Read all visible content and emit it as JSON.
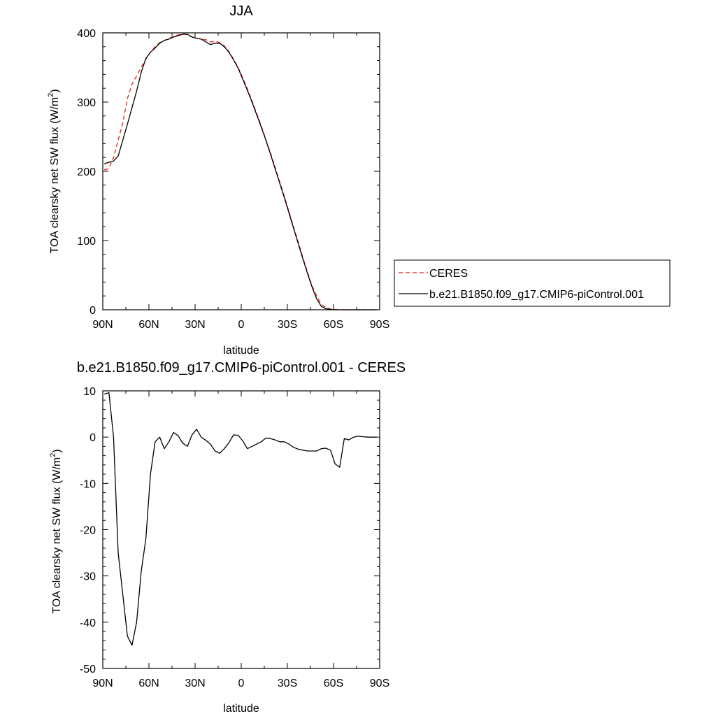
{
  "chart_data": [
    {
      "type": "line",
      "title": "JJA",
      "xlabel": "latitude",
      "ylabel": "TOA clearsky net SW flux (W/m²)",
      "ylabel_main": "TOA clearsky net SW flux (W/m",
      "ylabel_sup": "2",
      "ylabel_close": ")",
      "xlim": [
        90,
        -90
      ],
      "ylim": [
        0,
        400
      ],
      "x_ticks": [
        90,
        60,
        30,
        0,
        -30,
        -60,
        -90
      ],
      "x_tick_labels": [
        "90N",
        "60N",
        "30N",
        "0",
        "30S",
        "60S",
        "90S"
      ],
      "y_ticks": [
        0,
        100,
        200,
        300,
        400
      ],
      "y_tick_labels": [
        "0",
        "100",
        "200",
        "300",
        "400"
      ],
      "legend_position": "right",
      "series": [
        {
          "name": "CERES",
          "color": "#e8221c",
          "dash": true,
          "x": [
            89,
            86,
            83,
            80,
            77,
            74,
            71,
            68,
            65,
            62,
            59,
            56,
            53,
            50,
            47,
            44,
            41,
            38,
            35,
            32,
            29,
            26,
            23,
            20,
            17,
            14,
            11,
            8,
            5,
            2,
            -1,
            -4,
            -7,
            -10,
            -13,
            -16,
            -19,
            -22,
            -25,
            -28,
            -31,
            -34,
            -37,
            -40,
            -43,
            -46,
            -49,
            -52,
            -55,
            -58,
            -61,
            -64,
            -67,
            -70,
            -73,
            -76,
            -79,
            -82,
            -85,
            -88
          ],
          "values": [
            202,
            204,
            220,
            245,
            270,
            305,
            326,
            338,
            350,
            362,
            372,
            380,
            386,
            389,
            392,
            395,
            397,
            399,
            397,
            394,
            392,
            391,
            390,
            387,
            388,
            386,
            381,
            373,
            362,
            350,
            335,
            319,
            302,
            284,
            266,
            246,
            227,
            206,
            185,
            164,
            142,
            120,
            98,
            76,
            55,
            35,
            20,
            8,
            3,
            1,
            0.5,
            0,
            0,
            0,
            0,
            0,
            0,
            0,
            0,
            0
          ]
        },
        {
          "name": "b.e21.B1850.f09_g17.CMIP6-piControl.001",
          "color": "#000000",
          "dash": false,
          "x": [
            89,
            86,
            83,
            80,
            77,
            74,
            71,
            68,
            65,
            62,
            59,
            56,
            53,
            50,
            47,
            44,
            41,
            38,
            35,
            32,
            29,
            26,
            23,
            20,
            17,
            14,
            11,
            8,
            5,
            2,
            -1,
            -4,
            -7,
            -10,
            -13,
            -16,
            -19,
            -22,
            -25,
            -28,
            -31,
            -34,
            -37,
            -40,
            -43,
            -46,
            -49,
            -52,
            -55,
            -58,
            -61,
            -64,
            -67,
            -70,
            -73,
            -76,
            -79,
            -82,
            -85,
            -88
          ],
          "values": [
            211,
            213,
            215,
            222,
            245,
            268,
            292,
            316,
            343,
            363,
            372,
            378,
            385,
            389,
            391,
            394,
            396,
            398,
            398,
            394,
            392,
            391,
            387,
            383,
            385,
            385,
            380,
            372,
            361,
            349,
            333,
            317,
            300,
            282,
            264,
            245,
            225,
            204,
            183,
            162,
            140,
            118,
            96,
            74,
            53,
            33,
            16,
            5,
            1.5,
            0.5,
            0,
            0,
            0,
            0,
            0,
            0,
            0,
            0,
            0,
            0
          ]
        }
      ]
    },
    {
      "type": "line",
      "title": "b.e21.B1850.f09_g17.CMIP6-piControl.001 - CERES",
      "xlabel": "latitude",
      "ylabel": "TOA clearsky net SW flux (W/m²)",
      "ylabel_main": "TOA clearsky net SW flux (W/m",
      "ylabel_sup": "2",
      "ylabel_close": ")",
      "xlim": [
        90,
        -90
      ],
      "ylim": [
        -50,
        10
      ],
      "x_ticks": [
        90,
        60,
        30,
        0,
        -30,
        -60,
        -90
      ],
      "x_tick_labels": [
        "90N",
        "60N",
        "30N",
        "0",
        "30S",
        "60S",
        "90S"
      ],
      "y_ticks": [
        10,
        0,
        -10,
        -20,
        -30,
        -40,
        -50
      ],
      "y_tick_labels": [
        "10",
        "0",
        "-10",
        "-20",
        "-30",
        "-40",
        "-50"
      ],
      "series": [
        {
          "color": "#000000",
          "dash": false,
          "x": [
            89,
            86,
            83,
            80,
            77,
            74,
            71,
            68,
            65,
            62,
            59,
            56,
            53,
            50,
            47,
            44,
            41,
            38,
            35,
            32,
            29,
            26,
            23,
            20,
            17,
            14,
            11,
            8,
            5,
            2,
            -1,
            -4,
            -7,
            -10,
            -13,
            -16,
            -19,
            -22,
            -25,
            -28,
            -31,
            -34,
            -37,
            -40,
            -43,
            -46,
            -49,
            -52,
            -55,
            -58,
            -61,
            -64,
            -67,
            -70,
            -73,
            -76,
            -79,
            -82,
            -85,
            -88
          ],
          "values": [
            9.3,
            9.6,
            0,
            -25,
            -34,
            -43,
            -45,
            -40,
            -29,
            -22,
            -8,
            -1,
            0,
            -2.5,
            -1,
            1,
            0.3,
            -1.3,
            -2,
            0.5,
            1.7,
            0,
            -0.7,
            -1.5,
            -3,
            -3.5,
            -2.5,
            -1.2,
            0.5,
            0.4,
            -0.8,
            -2.5,
            -2,
            -1.5,
            -1,
            -0.2,
            -0.3,
            -0.6,
            -1,
            -1,
            -1.5,
            -2.2,
            -2.6,
            -2.8,
            -3,
            -3,
            -3,
            -2.5,
            -2.4,
            -2.8,
            -5.8,
            -6.5,
            -0.3,
            -0.6,
            0,
            0.2,
            0.1,
            0,
            0,
            0
          ]
        }
      ]
    }
  ]
}
